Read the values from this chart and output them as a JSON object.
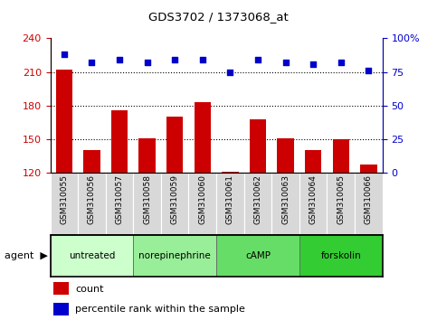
{
  "title": "GDS3702 / 1373068_at",
  "samples": [
    "GSM310055",
    "GSM310056",
    "GSM310057",
    "GSM310058",
    "GSM310059",
    "GSM310060",
    "GSM310061",
    "GSM310062",
    "GSM310063",
    "GSM310064",
    "GSM310065",
    "GSM310066"
  ],
  "counts": [
    212,
    140,
    176,
    151,
    170,
    183,
    121,
    168,
    151,
    140,
    150,
    127
  ],
  "percentiles": [
    88,
    82,
    84,
    82,
    84,
    84,
    75,
    84,
    82,
    81,
    82,
    76
  ],
  "ylim_left": [
    120,
    240
  ],
  "ylim_right": [
    0,
    100
  ],
  "yticks_left": [
    120,
    150,
    180,
    210,
    240
  ],
  "yticks_right": [
    0,
    25,
    50,
    75,
    100
  ],
  "ytick_labels_right": [
    "0",
    "25",
    "50",
    "75",
    "100%"
  ],
  "hlines": [
    150,
    180,
    210
  ],
  "bar_color": "#cc0000",
  "dot_color": "#0000cc",
  "left_tick_color": "#cc0000",
  "right_tick_color": "#0000cc",
  "agent_groups": [
    {
      "label": "untreated",
      "start": 0,
      "end": 2
    },
    {
      "label": "norepinephrine",
      "start": 3,
      "end": 5
    },
    {
      "label": "cAMP",
      "start": 6,
      "end": 8
    },
    {
      "label": "forskolin",
      "start": 9,
      "end": 11
    }
  ],
  "group_colors": [
    "#ccffcc",
    "#99ee99",
    "#66dd66",
    "#33cc33"
  ],
  "legend_count_label": "count",
  "legend_pct_label": "percentile rank within the sample",
  "figsize": [
    4.83,
    3.54
  ],
  "dpi": 100
}
